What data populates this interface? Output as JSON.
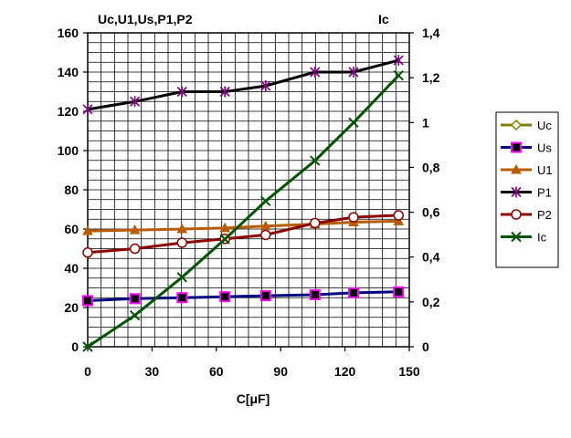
{
  "chart_data": {
    "type": "line",
    "title": "",
    "left_axis_title": "Uc,U1,Us,P1,P2",
    "right_axis_title": "Ic",
    "xlabel": "C[μF]",
    "xlim": [
      0,
      150
    ],
    "ylim_left": [
      0,
      160
    ],
    "ylim_right": [
      0,
      1.4
    ],
    "x_ticks": [
      "0",
      "30",
      "60",
      "90",
      "120",
      "150"
    ],
    "y_left_ticks": [
      "0",
      "20",
      "40",
      "60",
      "80",
      "100",
      "120",
      "140",
      "160"
    ],
    "y_right_ticks": [
      "0",
      "0,2",
      "0,4",
      "0,6",
      "0,8",
      "1",
      "1,2",
      "1,4"
    ],
    "grid": true,
    "legend_position": "right",
    "series": [
      {
        "name": "Uc",
        "axis": "left",
        "color": "#808000",
        "marker": "diamond",
        "x": [],
        "values": []
      },
      {
        "name": "Us",
        "axis": "left",
        "color": "#000080",
        "marker": "square",
        "marker_color": "#ff00ff",
        "x": [
          0,
          22,
          44,
          64,
          83,
          106,
          124,
          145
        ],
        "values": [
          23.5,
          24.5,
          25,
          25.5,
          26,
          26.5,
          27.5,
          28
        ]
      },
      {
        "name": "U1",
        "axis": "left",
        "color": "#b85c00",
        "marker": "triangle",
        "x": [
          0,
          22,
          44,
          64,
          83,
          106,
          124,
          145
        ],
        "values": [
          59,
          59.5,
          60,
          60.5,
          61.5,
          62.5,
          63.5,
          64
        ]
      },
      {
        "name": "P1",
        "axis": "left",
        "color": "#000000",
        "marker": "star",
        "marker_color": "#800080",
        "x": [
          0,
          22,
          44,
          64,
          83,
          106,
          124,
          145
        ],
        "values": [
          121,
          125,
          130,
          130,
          133,
          140,
          140,
          146
        ]
      },
      {
        "name": "P2",
        "axis": "left",
        "color": "#8b0000",
        "marker": "circle",
        "x": [
          0,
          22,
          44,
          64,
          83,
          106,
          124,
          145
        ],
        "values": [
          48,
          50,
          53,
          55,
          57,
          63,
          66,
          67
        ]
      },
      {
        "name": "Ic",
        "axis": "right",
        "color": "#005500",
        "marker": "x",
        "x": [
          0,
          22,
          44,
          64,
          83,
          106,
          124,
          145
        ],
        "values": [
          0,
          0.14,
          0.31,
          0.48,
          0.65,
          0.83,
          1.0,
          1.21
        ]
      }
    ]
  }
}
